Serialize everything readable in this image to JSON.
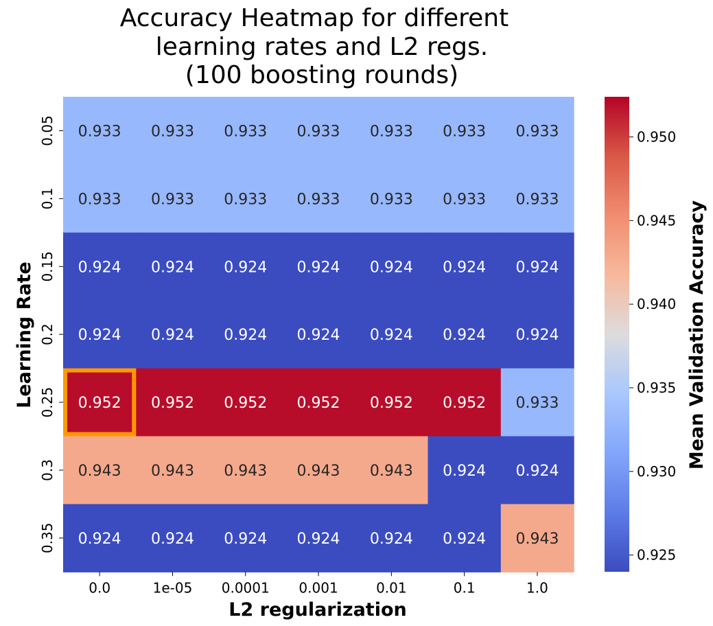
{
  "chart_data": {
    "type": "heatmap",
    "title": [
      "Accuracy Heatmap for different",
      "learning rates and L2 regs.",
      "(100 boosting rounds)"
    ],
    "xlabel": "L2 regularization",
    "ylabel": "Learning Rate",
    "x_categories": [
      "0.0",
      "1e-05",
      "0.0001",
      "0.001",
      "0.01",
      "0.1",
      "1.0"
    ],
    "y_categories": [
      "0.05",
      "0.1",
      "0.15",
      "0.2",
      "0.25",
      "0.3",
      "0.35"
    ],
    "values": [
      [
        0.933,
        0.933,
        0.933,
        0.933,
        0.933,
        0.933,
        0.933
      ],
      [
        0.933,
        0.933,
        0.933,
        0.933,
        0.933,
        0.933,
        0.933
      ],
      [
        0.924,
        0.924,
        0.924,
        0.924,
        0.924,
        0.924,
        0.924
      ],
      [
        0.924,
        0.924,
        0.924,
        0.924,
        0.924,
        0.924,
        0.924
      ],
      [
        0.952,
        0.952,
        0.952,
        0.952,
        0.952,
        0.952,
        0.933
      ],
      [
        0.943,
        0.943,
        0.943,
        0.943,
        0.943,
        0.924,
        0.924
      ],
      [
        0.924,
        0.924,
        0.924,
        0.924,
        0.924,
        0.924,
        0.943
      ]
    ],
    "colormap": "coolwarm",
    "vmin": 0.924,
    "vmax": 0.9524,
    "colorbar": {
      "label": "Mean Validation Accuracy",
      "ticks": [
        "0.925",
        "0.930",
        "0.935",
        "0.940",
        "0.945",
        "0.950"
      ]
    },
    "highlight": {
      "row": 4,
      "col": 0,
      "color": "#ff9900"
    },
    "text_colors": {
      "dark": "#262626",
      "light": "#ffffff"
    }
  }
}
